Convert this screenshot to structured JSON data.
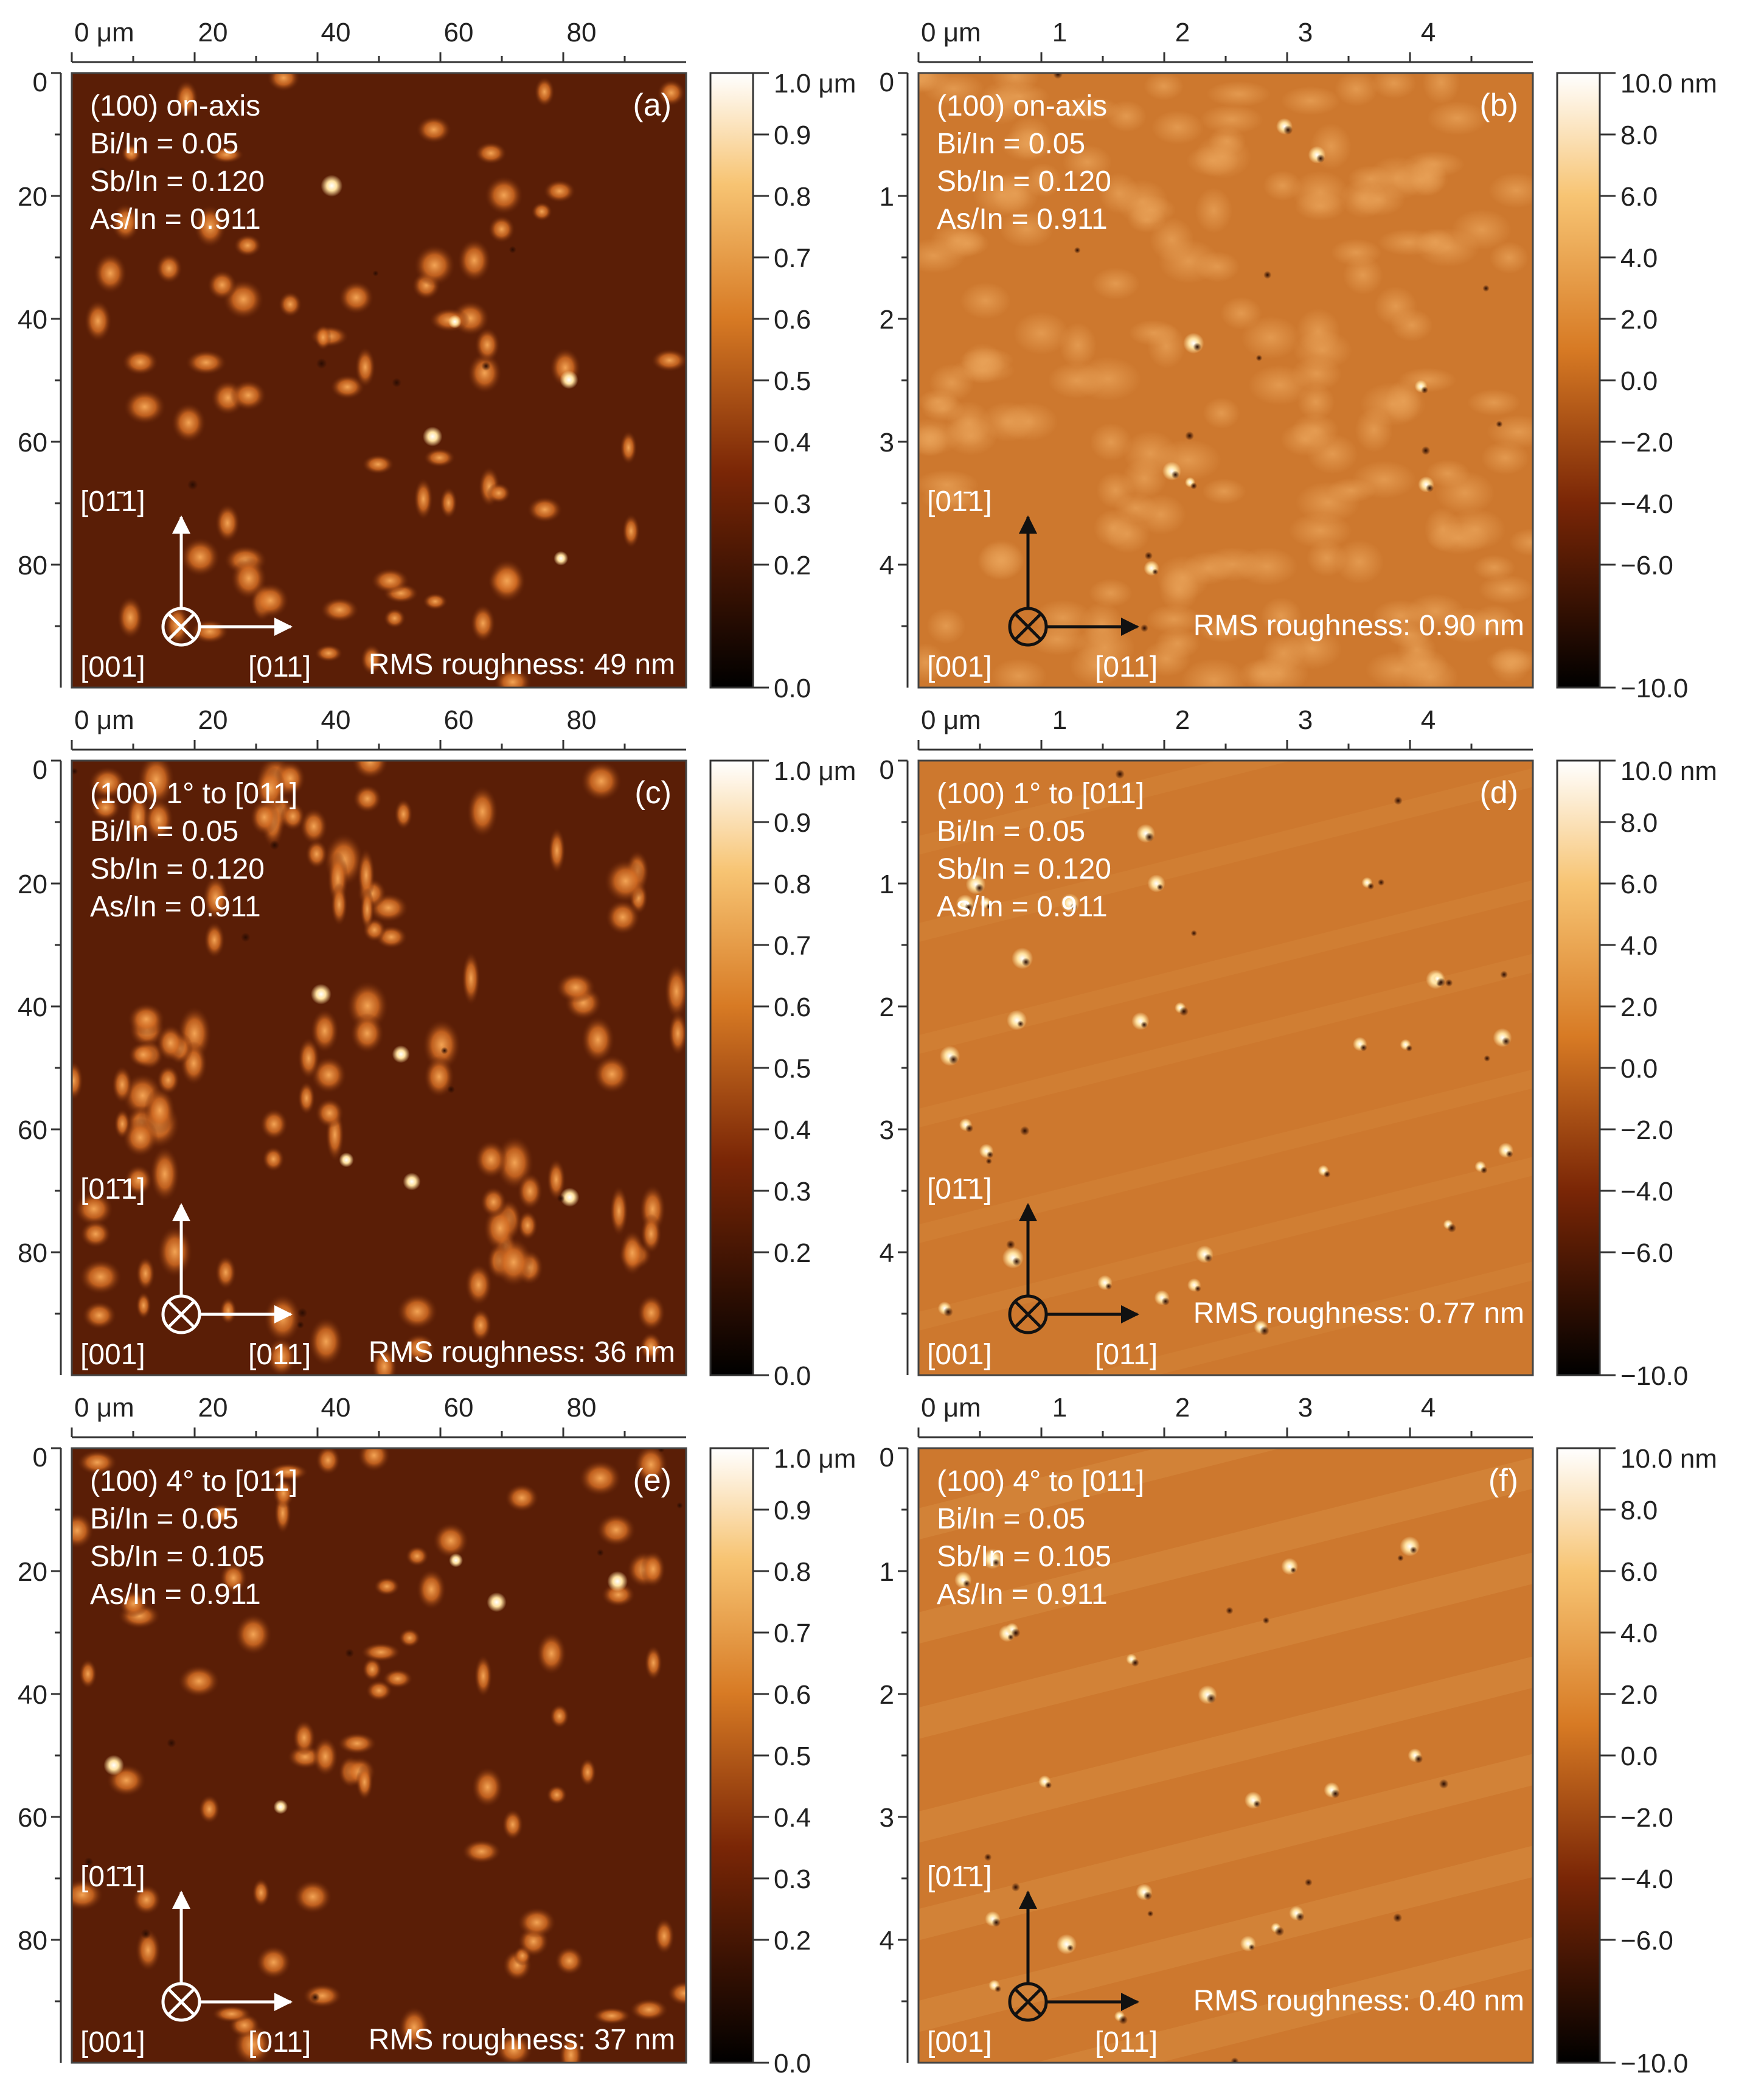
{
  "colors": {
    "left_base": "#5a1e06",
    "left_feature": "#c86420",
    "left_bright": "#ffe6a8",
    "right_base": "#cd782e",
    "right_light": "#e39a4f",
    "right_dark": "#3a1204",
    "annotation": "#ffffff"
  },
  "left_scale": {
    "ticks": [
      "0",
      "20",
      "40",
      "60",
      "80"
    ],
    "first_label": "0 μm",
    "values": [
      0,
      20,
      40,
      60,
      80
    ],
    "range": [
      0,
      100
    ]
  },
  "right_scale": {
    "ticks": [
      "0",
      "1",
      "2",
      "3",
      "4"
    ],
    "first_label": "0 μm",
    "values": [
      0,
      1,
      2,
      3,
      4
    ],
    "range": [
      0,
      5
    ]
  },
  "left_colorbar": {
    "labels": [
      "1.0 μm",
      "0.9",
      "0.8",
      "0.7",
      "0.6",
      "0.5",
      "0.4",
      "0.3",
      "0.2",
      "0.0"
    ],
    "values": [
      1.0,
      0.9,
      0.8,
      0.7,
      0.6,
      0.5,
      0.4,
      0.3,
      0.2,
      0.0
    ],
    "range": [
      0,
      1.0
    ]
  },
  "right_colorbar": {
    "labels": [
      "10.0 nm",
      "8.0",
      "6.0",
      "4.0",
      "2.0",
      "0.0",
      "−2.0",
      "−4.0",
      "−6.0",
      "−10.0"
    ],
    "values": [
      10,
      8,
      6,
      4,
      2,
      0,
      -2,
      -4,
      -6,
      -10
    ],
    "range": [
      -10,
      10
    ]
  },
  "direction_labels": {
    "up": "[01̄1]",
    "right": "[011]",
    "into": "[001]"
  },
  "panels": [
    {
      "id": "a",
      "label": "(a)",
      "side": "left",
      "lines": [
        "(100) on-axis",
        "Bi/In = 0.05",
        "Sb/In = 0.120",
        "As/In = 0.911"
      ],
      "rms": "RMS roughness: 49 nm"
    },
    {
      "id": "b",
      "label": "(b)",
      "side": "right",
      "lines": [
        "(100) on-axis",
        "Bi/In = 0.05",
        "Sb/In = 0.120",
        "As/In = 0.911"
      ],
      "rms": "RMS roughness: 0.90 nm"
    },
    {
      "id": "c",
      "label": "(c)",
      "side": "left",
      "lines": [
        "(100) 1° to [011]",
        "Bi/In = 0.05",
        "Sb/In = 0.120",
        "As/In = 0.911"
      ],
      "rms": "RMS roughness: 36 nm"
    },
    {
      "id": "d",
      "label": "(d)",
      "side": "right",
      "lines": [
        "(100) 1° to [011]",
        "Bi/In = 0.05",
        "Sb/In = 0.120",
        "As/In = 0.911"
      ],
      "rms": "RMS roughness: 0.77 nm"
    },
    {
      "id": "e",
      "label": "(e)",
      "side": "left",
      "lines": [
        "(100) 4° to [011]",
        "Bi/In = 0.05",
        "Sb/In = 0.105",
        "As/In = 0.911"
      ],
      "rms": "RMS roughness: 37 nm"
    },
    {
      "id": "f",
      "label": "(f)",
      "side": "right",
      "lines": [
        "(100) 4° to [011]",
        "Bi/In = 0.05",
        "Sb/In = 0.105",
        "As/In = 0.911"
      ],
      "rms": "RMS roughness: 0.40 nm"
    }
  ]
}
